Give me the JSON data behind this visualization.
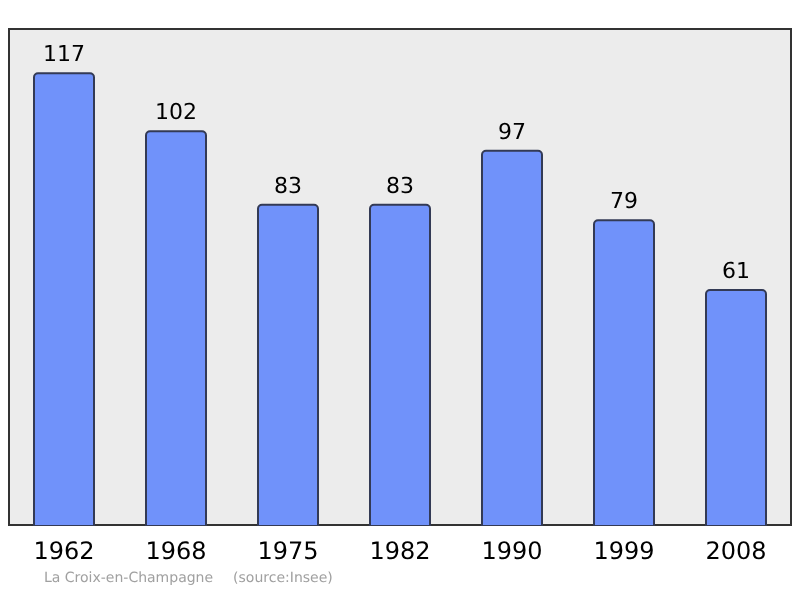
{
  "chart_data": {
    "type": "bar",
    "categories": [
      "1962",
      "1968",
      "1975",
      "1982",
      "1990",
      "1999",
      "2008"
    ],
    "values": [
      117,
      102,
      83,
      83,
      97,
      79,
      61
    ],
    "color": "#7092fa",
    "data_labels": true,
    "tick_labels": "x",
    "grid": false,
    "legend": false,
    "annotations": [
      "La Croix-en-Champagne",
      "(source:Insee)"
    ]
  }
}
